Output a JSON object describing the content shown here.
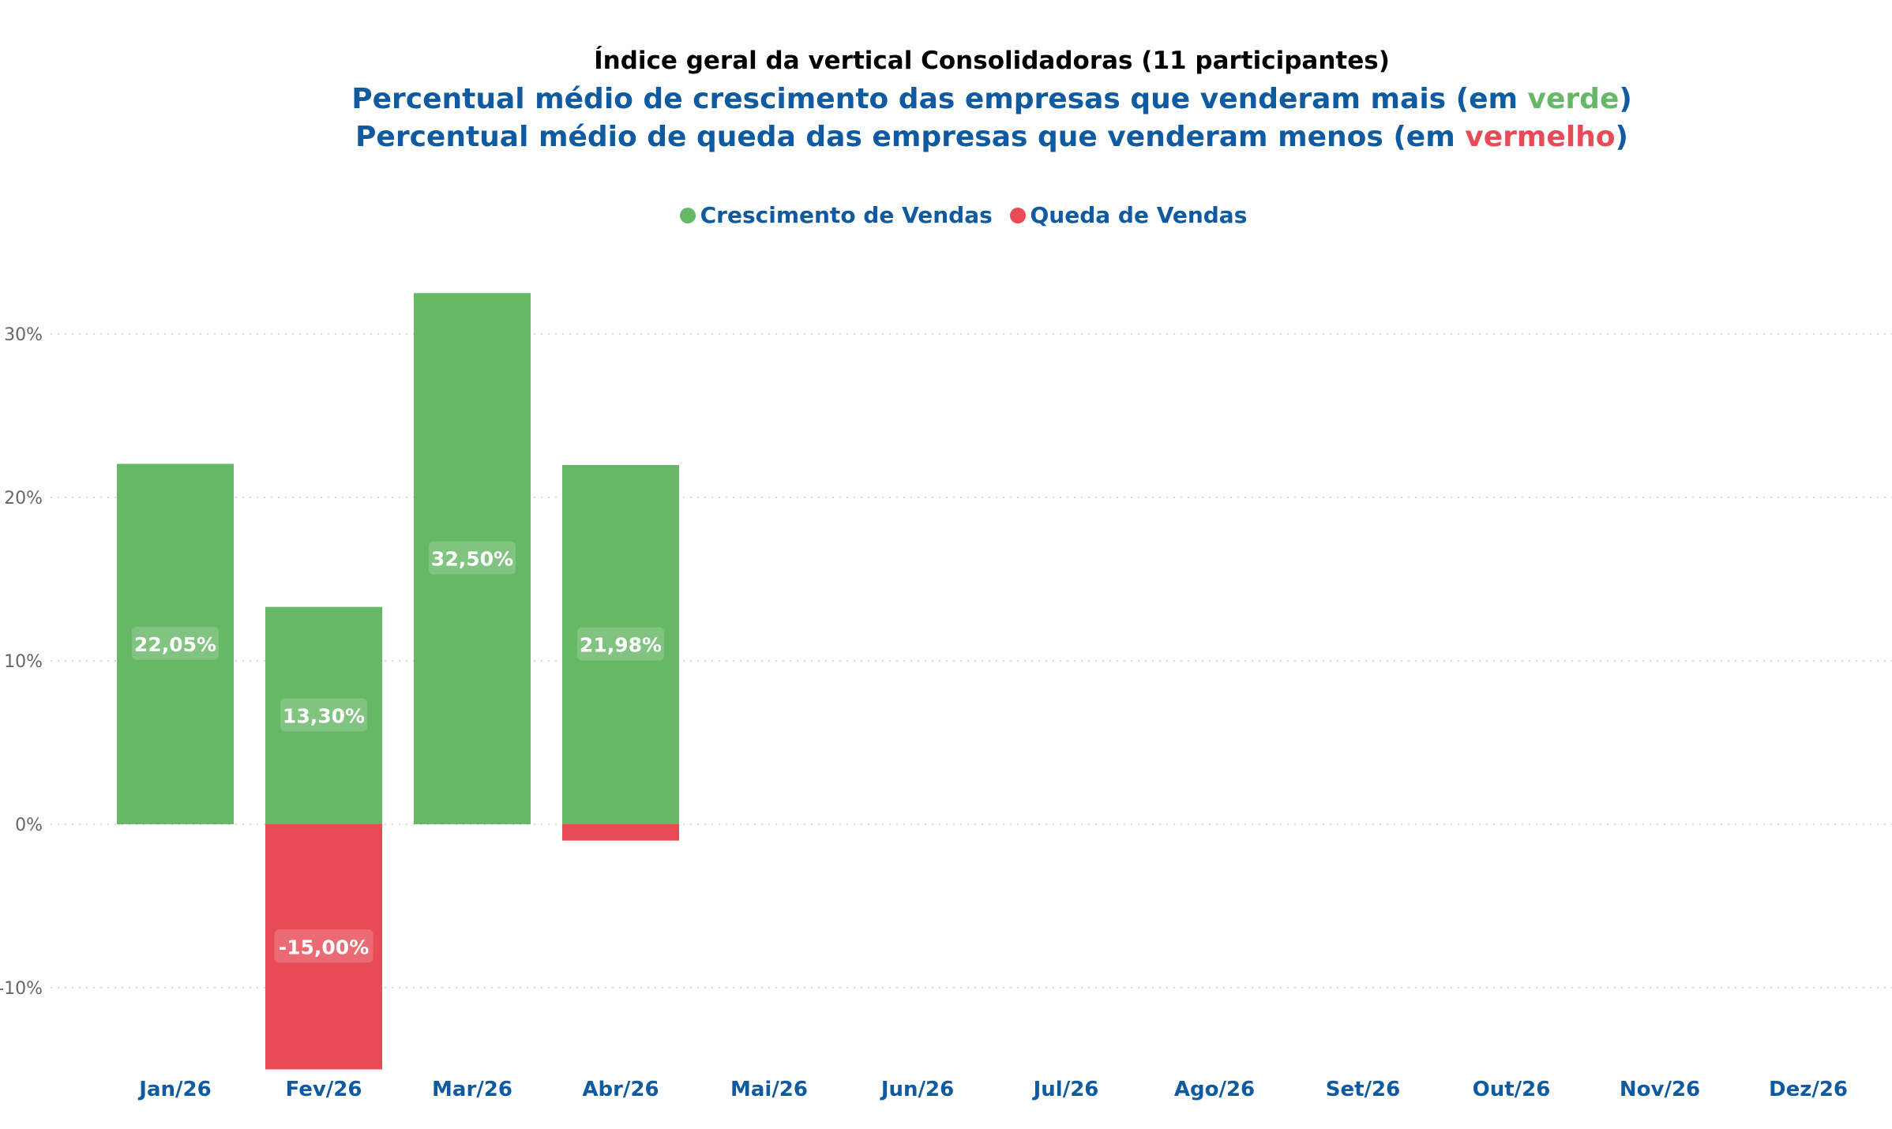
{
  "colors": {
    "growth": "#66b766",
    "decline": "#e84a56",
    "title_blue": "#0f5aa0",
    "grid": "#d9d9d9",
    "tick": "#666666"
  },
  "header": {
    "line1": "Índice geral da vertical Consolidadoras  (11 participantes)",
    "line2_prefix": "Percentual médio de crescimento das empresas que venderam mais (em ",
    "line2_word": "verde",
    "line2_suffix": ")",
    "line3_prefix": "Percentual médio de queda das empresas que venderam menos (em ",
    "line3_word": "vermelho",
    "line3_suffix": ")"
  },
  "legend": {
    "items": [
      {
        "label": "Crescimento de Vendas",
        "color": "#66b766"
      },
      {
        "label": "Queda de Vendas",
        "color": "#e84a56"
      }
    ]
  },
  "chart_data": {
    "type": "bar",
    "stacked": true,
    "categories": [
      "Jan/26",
      "Fev/26",
      "Mar/26",
      "Abr/26",
      "Mai/26",
      "Jun/26",
      "Jul/26",
      "Ago/26",
      "Set/26",
      "Out/26",
      "Nov/26",
      "Dez/26"
    ],
    "series": [
      {
        "name": "Crescimento de Vendas",
        "color": "#66b766",
        "values": [
          22.05,
          13.3,
          32.5,
          21.98,
          null,
          null,
          null,
          null,
          null,
          null,
          null,
          null
        ],
        "labels": [
          "22,05%",
          "13,30%",
          "32,50%",
          "21,98%",
          "",
          "",
          "",
          "",
          "",
          "",
          "",
          ""
        ]
      },
      {
        "name": "Queda de Vendas",
        "color": "#e84a56",
        "values": [
          0,
          -15.0,
          0,
          -1.0,
          null,
          null,
          null,
          null,
          null,
          null,
          null,
          null
        ],
        "labels": [
          "",
          "-15,00%",
          "",
          "",
          "",
          "",
          "",
          "",
          "",
          "",
          "",
          ""
        ]
      }
    ],
    "y_ticks": [
      -10,
      0,
      10,
      20,
      30
    ],
    "y_tick_labels": [
      "-10%",
      "0%",
      "10%",
      "20%",
      "30%"
    ],
    "ylim": [
      -15,
      33
    ],
    "grid": true,
    "legend_position": "top-center"
  }
}
